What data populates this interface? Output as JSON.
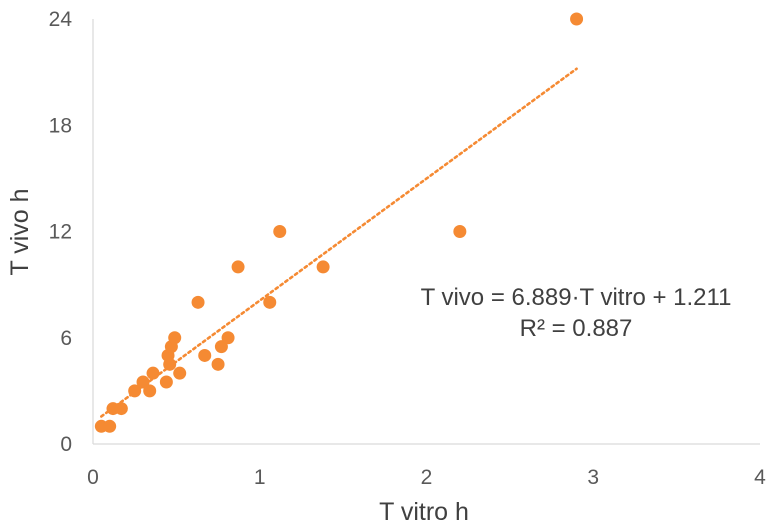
{
  "chart_data": {
    "type": "scatter",
    "title": "",
    "xlabel": "T vitro h",
    "ylabel": "T vivo h",
    "xlim": [
      0,
      4
    ],
    "ylim": [
      0,
      24
    ],
    "xticks": [
      "0",
      "1",
      "2",
      "3",
      "4"
    ],
    "yticks": [
      "0",
      "6",
      "12",
      "18",
      "24"
    ],
    "grid": false,
    "marker_color": "#F58A33",
    "trendline": {
      "type": "linear",
      "slope": 6.889,
      "intercept": 1.211,
      "x_range": [
        0.05,
        2.9
      ],
      "style": "dotted",
      "color": "#F58A33"
    },
    "equation_label": "T vivo = 6.889·T vitro + 1.211",
    "r2_label": "R² = 0.887",
    "points": [
      {
        "x": 0.05,
        "y": 1.0
      },
      {
        "x": 0.1,
        "y": 1.0
      },
      {
        "x": 0.12,
        "y": 2.0
      },
      {
        "x": 0.17,
        "y": 2.0
      },
      {
        "x": 0.25,
        "y": 3.0
      },
      {
        "x": 0.3,
        "y": 3.5
      },
      {
        "x": 0.34,
        "y": 3.0
      },
      {
        "x": 0.36,
        "y": 4.0
      },
      {
        "x": 0.44,
        "y": 3.5
      },
      {
        "x": 0.45,
        "y": 5.0
      },
      {
        "x": 0.46,
        "y": 4.5
      },
      {
        "x": 0.47,
        "y": 5.5
      },
      {
        "x": 0.49,
        "y": 6.0
      },
      {
        "x": 0.52,
        "y": 4.0
      },
      {
        "x": 0.63,
        "y": 8.0
      },
      {
        "x": 0.67,
        "y": 5.0
      },
      {
        "x": 0.75,
        "y": 4.5
      },
      {
        "x": 0.77,
        "y": 5.5
      },
      {
        "x": 0.81,
        "y": 6.0
      },
      {
        "x": 0.87,
        "y": 10.0
      },
      {
        "x": 1.06,
        "y": 8.0
      },
      {
        "x": 1.12,
        "y": 12.0
      },
      {
        "x": 1.38,
        "y": 10.0
      },
      {
        "x": 2.2,
        "y": 12.0
      },
      {
        "x": 2.9,
        "y": 24.0
      }
    ]
  }
}
